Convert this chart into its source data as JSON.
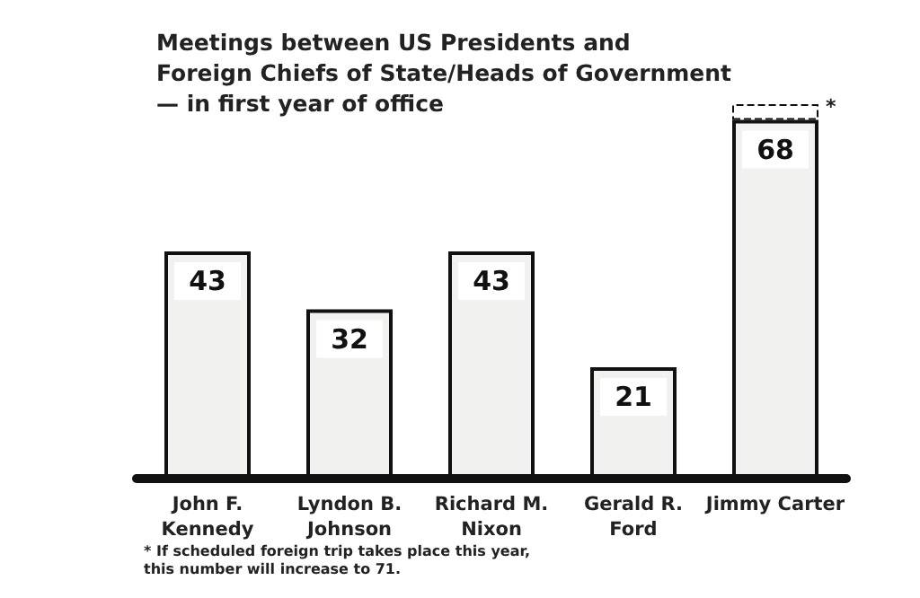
{
  "chart_data": {
    "type": "bar",
    "title": "Meetings between US Presidents and\nForeign Chiefs of State/Heads of Government\n— in first year of office",
    "categories": [
      "John F.\nKennedy",
      "Lyndon B.\nJohnson",
      "Richard M.\nNixon",
      "Gerald R.\nFord",
      "Jimmy Carter"
    ],
    "stacked": true,
    "series": [
      {
        "color": "#f1f1ef",
        "values": [
          43,
          32,
          43,
          21,
          68
        ],
        "value_labels": [
          "43",
          "32",
          "43",
          "21",
          "68"
        ]
      },
      {
        "color": "#ffffff",
        "line_style": "dashed",
        "values": [
          null,
          null,
          null,
          null,
          3
        ]
      }
    ],
    "annotations": [
      {
        "text": "*",
        "x": "Jimmy Carter",
        "y": 71
      },
      "* If scheduled foreign trip takes place this year,\nthis number will increase to 71."
    ]
  }
}
